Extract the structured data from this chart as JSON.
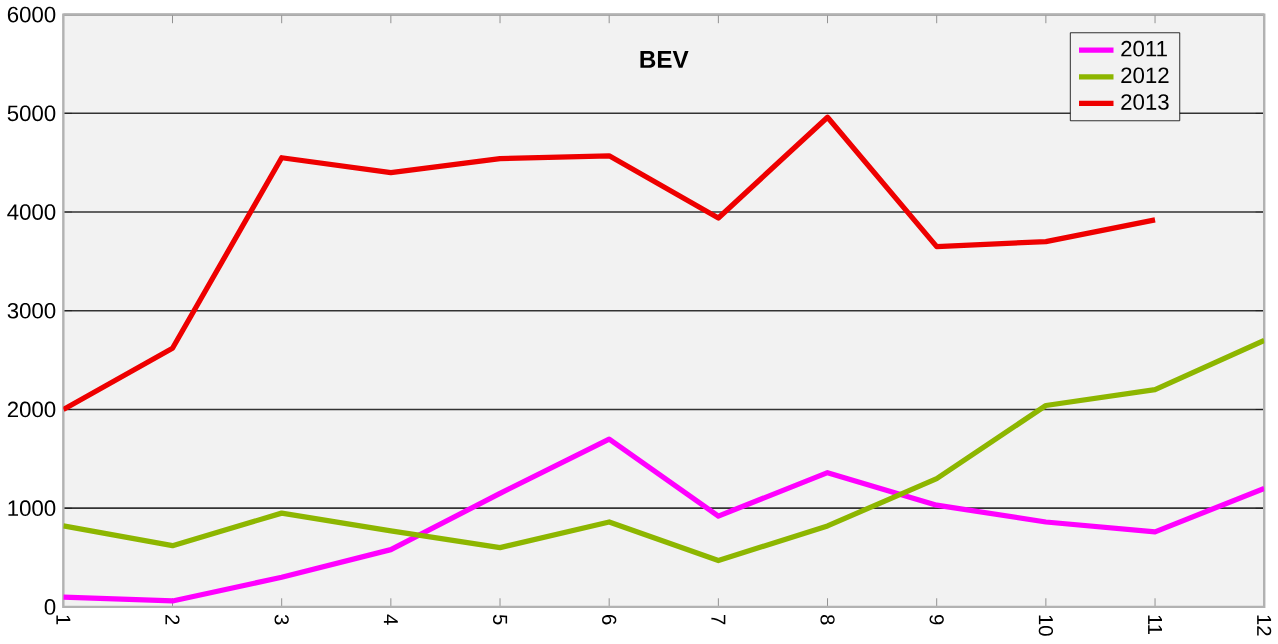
{
  "chart_data": {
    "type": "line",
    "title": "BEV",
    "categories": [
      "1",
      "2",
      "3",
      "4",
      "5",
      "6",
      "7",
      "8",
      "9",
      "10",
      "11",
      "12"
    ],
    "series": [
      {
        "name": "2011",
        "color": "#ff00ff",
        "values": [
          100,
          60,
          300,
          580,
          1150,
          1700,
          920,
          1360,
          1030,
          860,
          760,
          1200
        ]
      },
      {
        "name": "2012",
        "color": "#8db600",
        "values": [
          820,
          620,
          950,
          770,
          600,
          860,
          470,
          820,
          1300,
          2040,
          2200,
          2700
        ]
      },
      {
        "name": "2013",
        "color": "#ee0000",
        "values": [
          2000,
          2620,
          4550,
          4400,
          4540,
          4570,
          3940,
          4960,
          3650,
          3700,
          3920,
          null
        ]
      }
    ],
    "ylim": [
      0,
      6000
    ],
    "yticks": [
      0,
      1000,
      2000,
      3000,
      4000,
      5000,
      6000
    ],
    "grid": "y",
    "legend": "top right",
    "marker": "none",
    "line_style": "solid"
  }
}
